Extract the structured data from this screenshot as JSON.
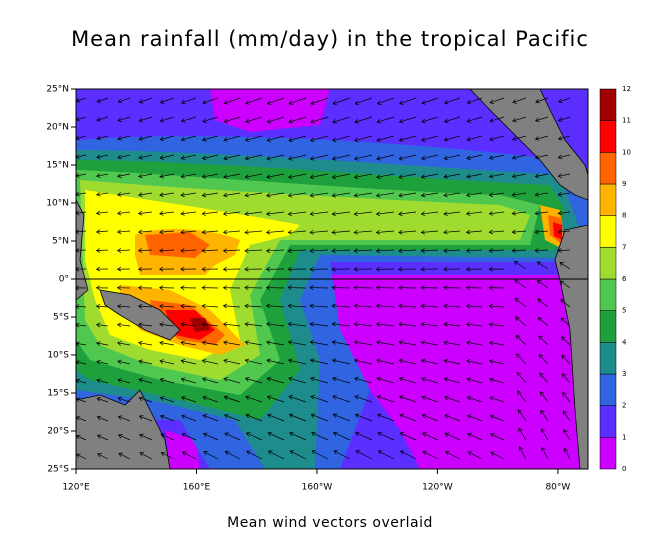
{
  "chart_data": {
    "type": "filled-contour-map",
    "title": "Mean rainfall (mm/day) in the tropical Pacific",
    "subtitle": "Mean wind vectors overlaid",
    "xlim": [
      120,
      290
    ],
    "ylim": [
      -25,
      25
    ],
    "xticks": [
      {
        "value": 120,
        "label": "120°E"
      },
      {
        "value": 160,
        "label": "160°E"
      },
      {
        "value": 200,
        "label": "160°W"
      },
      {
        "value": 240,
        "label": "120°W"
      },
      {
        "value": 280,
        "label": "80°W"
      }
    ],
    "yticks": [
      {
        "value": 25,
        "label": "25°N"
      },
      {
        "value": 20,
        "label": "20°N"
      },
      {
        "value": 15,
        "label": "15°N"
      },
      {
        "value": 10,
        "label": "10°N"
      },
      {
        "value": 5,
        "label": "5°N"
      },
      {
        "value": 0,
        "label": "0°"
      },
      {
        "value": -5,
        "label": "5°S"
      },
      {
        "value": -10,
        "label": "10°S"
      },
      {
        "value": -15,
        "label": "15°S"
      },
      {
        "value": -20,
        "label": "20°S"
      },
      {
        "value": -25,
        "label": "25°S"
      }
    ],
    "colorbar": {
      "levels": [
        0,
        1,
        2,
        3,
        4,
        5,
        6,
        7,
        8,
        9,
        10,
        11,
        12
      ],
      "colors": [
        "#cc00ff",
        "#5a2fff",
        "#3064e0",
        "#1e8c8c",
        "#1ea03c",
        "#50c850",
        "#a0dc30",
        "#ffff00",
        "#ffb400",
        "#ff6400",
        "#ff0000",
        "#a00000"
      ]
    }
  }
}
